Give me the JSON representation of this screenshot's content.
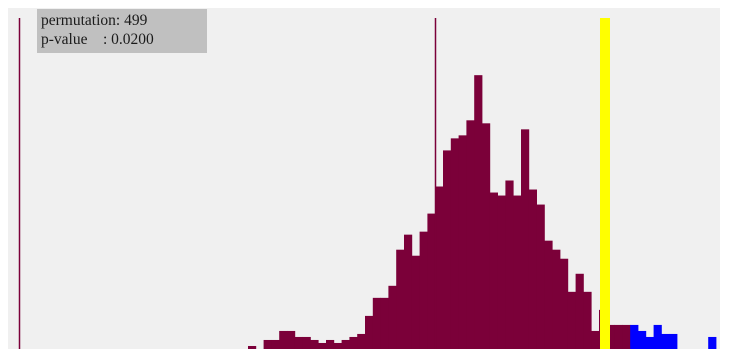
{
  "info": {
    "permutation_label": "permutation: ",
    "permutation_value": "499",
    "pvalue_label": "p-value    : ",
    "pvalue_value": "0.0200"
  },
  "colors": {
    "panel_background": "#f0f0f0",
    "null_distribution": "#7b0039",
    "extreme_tail": "#0000ff",
    "observed_statistic": "#ffff00",
    "reference_line": "#7b0039"
  },
  "chart_data": {
    "type": "bar",
    "description_of_encoding": "histogram of permutation statistics (bin counts); bins beyond the observed statistic drawn in blue",
    "bins_maroon": [
      1,
      0,
      3,
      3,
      6,
      6,
      4,
      4,
      3,
      2,
      3,
      2,
      3,
      4,
      5,
      11,
      17,
      17,
      21,
      33,
      38,
      31,
      39,
      45,
      54,
      66,
      70,
      71,
      76,
      91,
      75,
      52,
      51,
      56,
      51,
      73,
      53,
      48,
      36,
      33,
      30,
      19,
      25,
      19,
      6,
      13,
      8,
      8,
      8
    ],
    "bins_blue": [
      8,
      6,
      4,
      8,
      5,
      5,
      0,
      0,
      0,
      0,
      4,
      0
    ],
    "ylim": [
      0,
      110
    ],
    "observed_bin_index": 49,
    "mean_bin_index": 28
  }
}
